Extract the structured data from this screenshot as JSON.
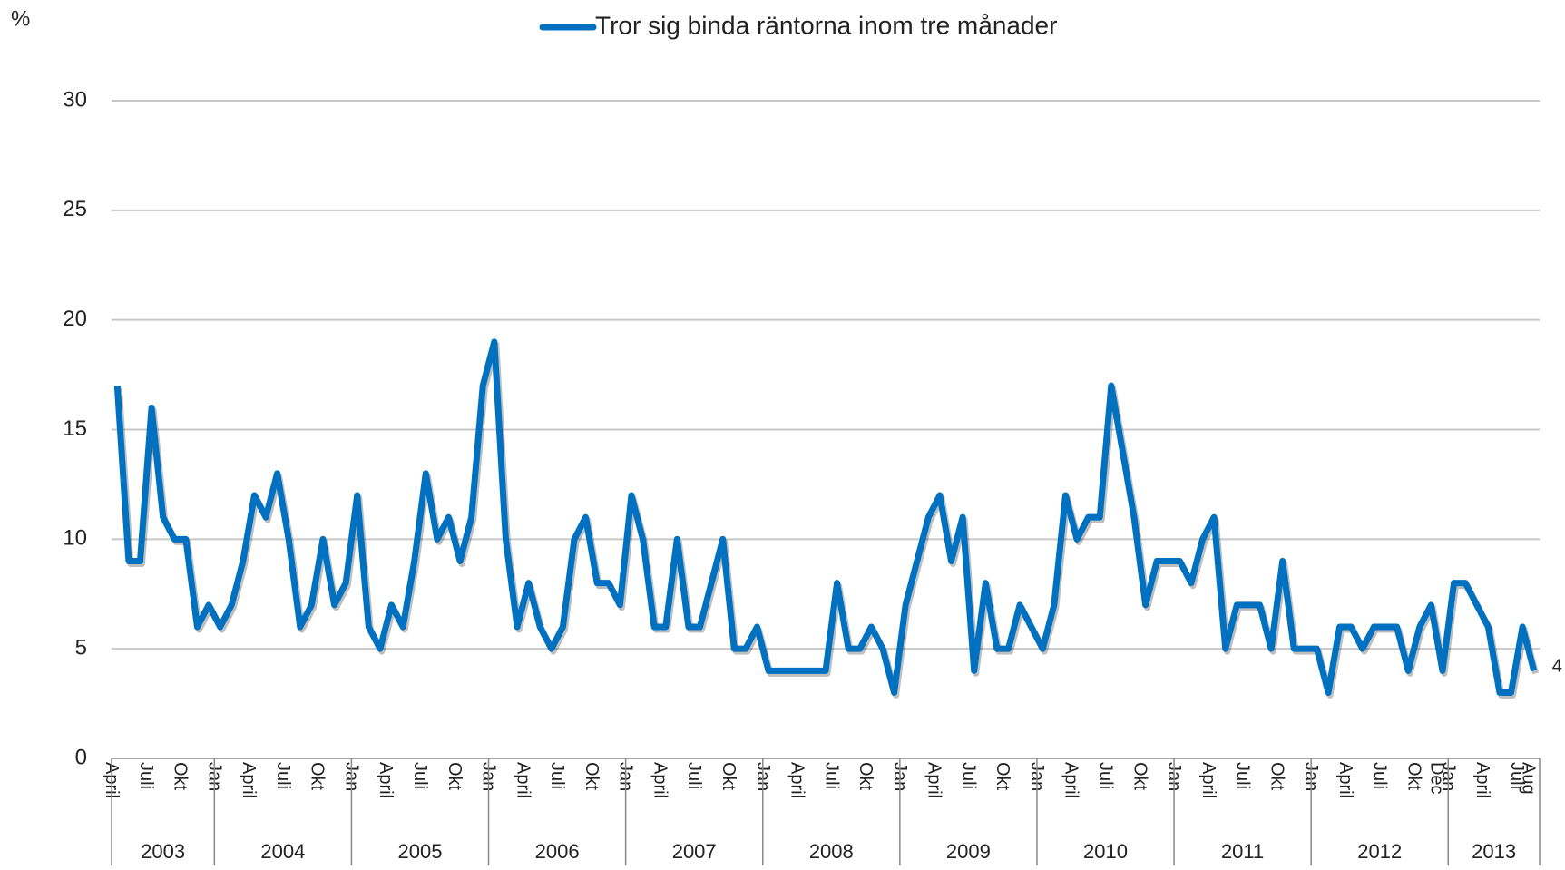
{
  "chart_data": {
    "type": "line",
    "y_label": "%",
    "categories": [
      "April",
      null,
      null,
      "Juli",
      null,
      null,
      "Okt",
      null,
      null,
      "Jan",
      null,
      null,
      "April",
      null,
      null,
      "Juli",
      null,
      null,
      "Okt",
      null,
      null,
      "Jan",
      null,
      null,
      "April",
      null,
      null,
      "Juli",
      null,
      null,
      "Okt",
      null,
      null,
      "Jan",
      null,
      null,
      "April",
      null,
      null,
      "Juli",
      null,
      null,
      "Okt",
      null,
      null,
      "Jan",
      null,
      null,
      "April",
      null,
      null,
      "Juli",
      null,
      null,
      "Okt",
      null,
      null,
      "Jan",
      null,
      null,
      "April",
      null,
      null,
      "Juli",
      null,
      null,
      "Okt",
      null,
      null,
      "Jan",
      null,
      null,
      "April",
      null,
      null,
      "Juli",
      null,
      null,
      "Okt",
      null,
      null,
      "Jan",
      null,
      null,
      "April",
      null,
      null,
      "Juli",
      null,
      null,
      "Okt",
      null,
      null,
      "Jan",
      null,
      null,
      "April",
      null,
      null,
      "Juli",
      null,
      null,
      "Okt",
      null,
      null,
      "Jan",
      null,
      null,
      "April",
      null,
      null,
      "Juli",
      null,
      null,
      "Okt",
      null,
      "Dec",
      "Jan",
      null,
      null,
      "April",
      null,
      null,
      "Juli",
      "Aug"
    ],
    "year_labels": [
      "2003",
      "2004",
      "2005",
      "2006",
      "2007",
      "2008",
      "2009",
      "2010",
      "2011",
      "2012",
      "2013"
    ],
    "series": [
      {
        "name": "Tror sig binda räntorna inom tre månader",
        "color": "#0070c0",
        "values": [
          17,
          9,
          9,
          16,
          11,
          10,
          10,
          6,
          7,
          6,
          7,
          9,
          12,
          11,
          13,
          10,
          6,
          7,
          10,
          7,
          8,
          12,
          6,
          5,
          7,
          6,
          9,
          13,
          10,
          11,
          9,
          11,
          17,
          19,
          10,
          6,
          8,
          6,
          5,
          6,
          10,
          11,
          8,
          8,
          7,
          12,
          10,
          6,
          6,
          10,
          6,
          6,
          8,
          10,
          5,
          5,
          6,
          4,
          4,
          4,
          4,
          4,
          4,
          8,
          5,
          5,
          6,
          5,
          3,
          7,
          9,
          11,
          12,
          9,
          11,
          4,
          8,
          5,
          5,
          7,
          6,
          5,
          7,
          12,
          10,
          11,
          11,
          17,
          14,
          11,
          7,
          9,
          9,
          9,
          8,
          10,
          11,
          5,
          7,
          7,
          7,
          5,
          9,
          5,
          5,
          5,
          3,
          6,
          6,
          5,
          6,
          6,
          6,
          4,
          6,
          7,
          4,
          8,
          8,
          7,
          6,
          3,
          3,
          6,
          4
        ]
      }
    ],
    "ylim": [
      0,
      30
    ],
    "yticks": [
      0,
      5,
      10,
      15,
      20,
      25,
      30
    ],
    "grid": true,
    "legend": "top"
  }
}
